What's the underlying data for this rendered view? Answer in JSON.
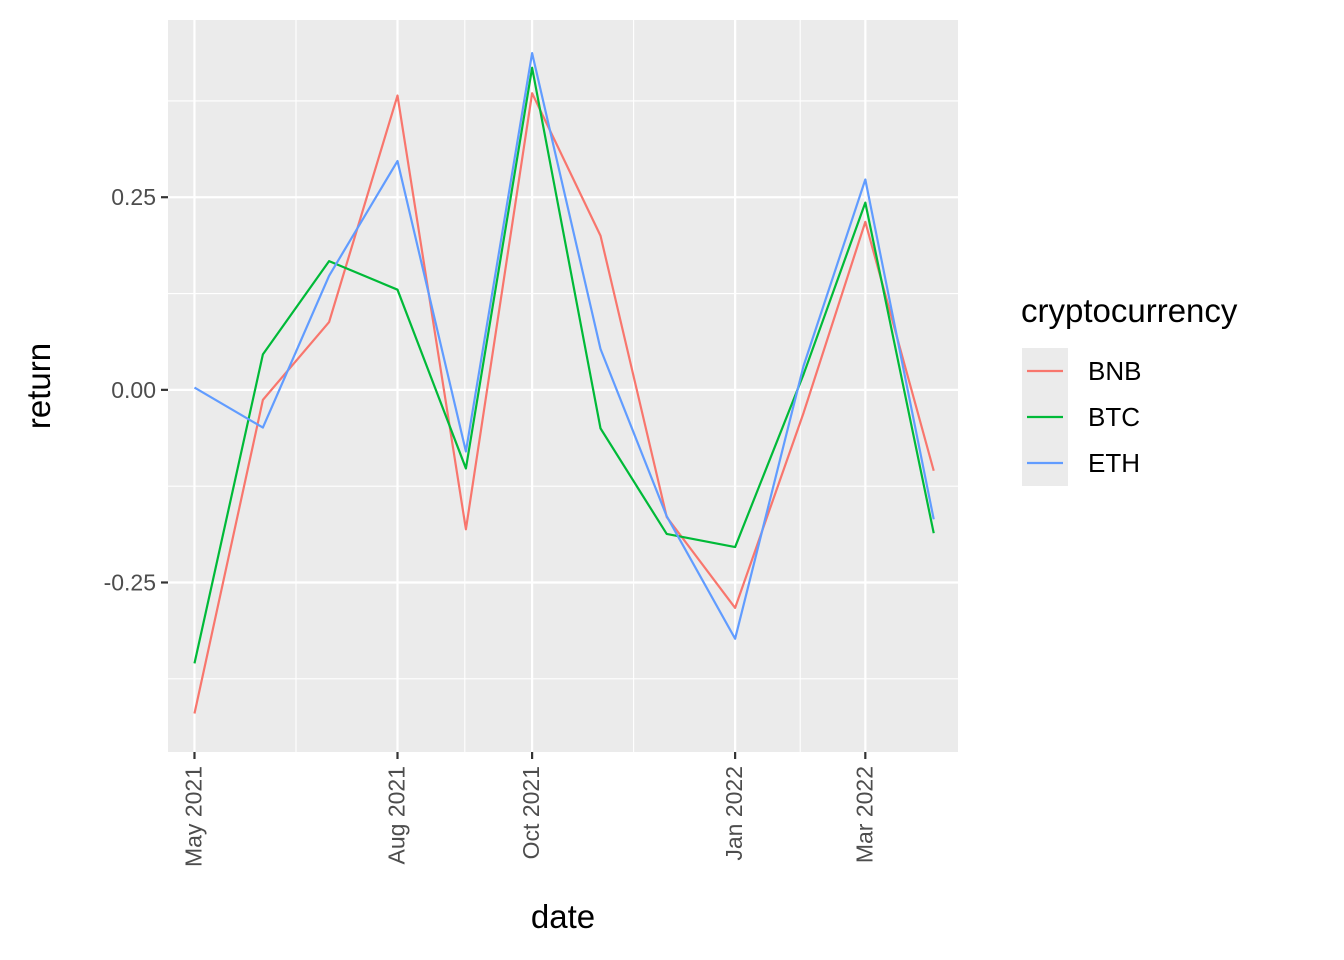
{
  "chart_data": {
    "type": "line",
    "xlabel": "date",
    "ylabel": "return",
    "x": [
      "2021-05-01",
      "2021-06-01",
      "2021-07-01",
      "2021-08-01",
      "2021-09-01",
      "2021-10-01",
      "2021-11-01",
      "2021-12-01",
      "2022-01-01",
      "2022-02-01",
      "2022-03-01",
      "2022-04-01"
    ],
    "xlim": [
      "2021-04-19",
      "2022-04-12"
    ],
    "ylim": [
      -0.47,
      0.48
    ],
    "x_ticks": [
      {
        "date": "2021-05-01",
        "label": "May 2021"
      },
      {
        "date": "2021-08-01",
        "label": "Aug 2021"
      },
      {
        "date": "2021-10-01",
        "label": "Oct 2021"
      },
      {
        "date": "2022-01-01",
        "label": "Jan 2022"
      },
      {
        "date": "2022-03-01",
        "label": "Mar 2022"
      }
    ],
    "y_ticks": [
      {
        "value": 0.25,
        "label": "0.25"
      },
      {
        "value": 0.0,
        "label": "0.00"
      },
      {
        "value": -0.25,
        "label": "-0.25"
      }
    ],
    "grid": true,
    "legend": {
      "title": "cryptocurrency",
      "position": "right"
    },
    "series": [
      {
        "name": "BNB",
        "color": "#F8766D",
        "values": [
          -0.42,
          -0.013,
          0.088,
          0.382,
          -0.181,
          0.385,
          0.2,
          -0.165,
          -0.283,
          -0.03,
          0.218,
          -0.105
        ]
      },
      {
        "name": "BTC",
        "color": "#00BA38",
        "values": [
          -0.355,
          0.046,
          0.167,
          0.13,
          -0.102,
          0.418,
          -0.05,
          -0.187,
          -0.204,
          0.02,
          0.243,
          -0.186
        ]
      },
      {
        "name": "ETH",
        "color": "#619CFF",
        "values": [
          0.003,
          -0.049,
          0.148,
          0.297,
          -0.08,
          0.437,
          0.053,
          -0.164,
          -0.323,
          0.031,
          0.273,
          -0.168
        ]
      }
    ]
  }
}
